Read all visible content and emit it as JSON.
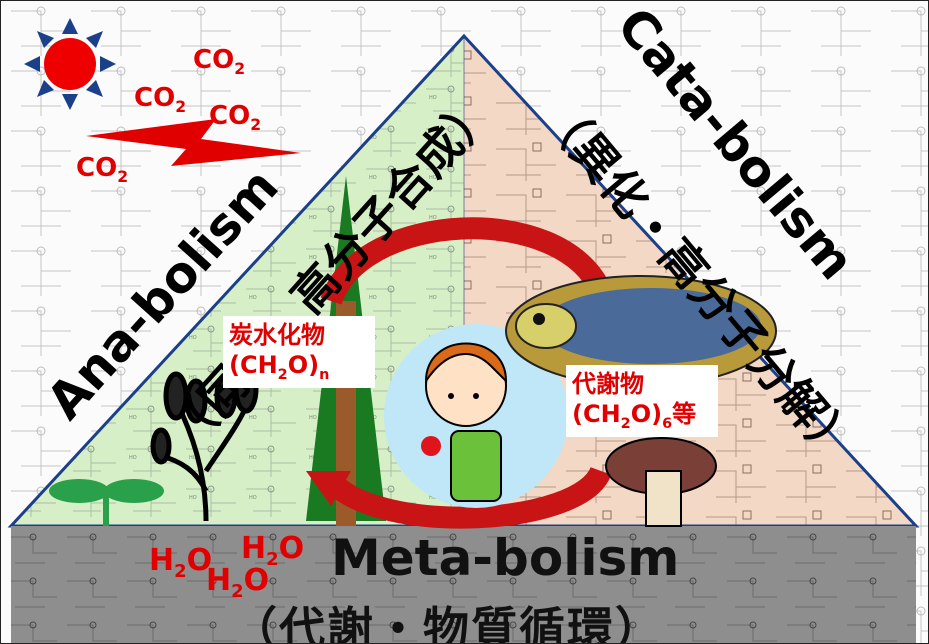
{
  "diagram": {
    "anabolism": {
      "title": "Ana-bolism",
      "subtitle": "（同化・高分子合成）"
    },
    "catabolism": {
      "title": "Cata-bolism",
      "subtitle": "（異化・高分子分解）"
    },
    "metabolism": {
      "title": "Meta-bolism",
      "subtitle": "（代謝・物質循環）"
    },
    "co2_labels": [
      {
        "main": "CO",
        "sub": "2"
      },
      {
        "main": "CO",
        "sub": "2"
      },
      {
        "main": "CO",
        "sub": "2"
      },
      {
        "main": "CO",
        "sub": "2"
      }
    ],
    "h2o_labels": [
      {
        "a": "H",
        "sub": "2",
        "b": "O"
      },
      {
        "a": "H",
        "sub": "2",
        "b": "O"
      },
      {
        "a": "H",
        "sub": "2",
        "b": "O"
      }
    ],
    "carbohydrate": {
      "line1": "炭水化物",
      "formula_a": "(CH",
      "formula_sub": "2",
      "formula_b": "O)",
      "formula_n": "n"
    },
    "metabolite": {
      "line1": "代謝物",
      "formula_a": "(CH",
      "formula_sub": "2",
      "formula_b": "O)",
      "formula_n": "6",
      "suffix": "等"
    },
    "icons": [
      "sun-icon",
      "lightning-icon",
      "tree-icon",
      "wheat-icon",
      "sprout-icon",
      "child-eating-apple-icon",
      "bowl-icon",
      "mushroom-icon",
      "cycle-arrow-icon"
    ],
    "colors": {
      "anabolism_bg": "#d8f0c8",
      "catabolism_bg": "#f3d9c6",
      "metabolism_bar": "#8c8c8c",
      "accent": "#e00000",
      "arrow": "#c81414"
    }
  }
}
